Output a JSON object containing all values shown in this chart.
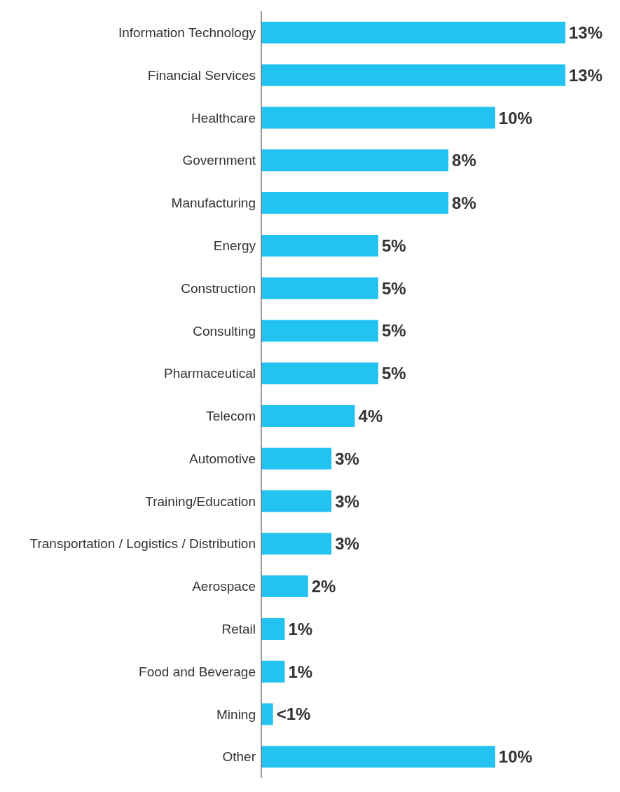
{
  "chart_data": {
    "type": "bar",
    "orientation": "horizontal",
    "categories": [
      "Information Technology",
      "Financial Services",
      "Healthcare",
      "Government",
      "Manufacturing",
      "Energy",
      "Construction",
      "Consulting",
      "Pharmaceutical",
      "Telecom",
      "Automotive",
      "Training/Education",
      "Transportation / Logistics / Distribution",
      "Aerospace",
      "Retail",
      "Food and Beverage",
      "Mining",
      "Other"
    ],
    "values": [
      13,
      13,
      10,
      8,
      8,
      5,
      5,
      5,
      5,
      4,
      3,
      3,
      3,
      2,
      1,
      1,
      0.5,
      10
    ],
    "value_labels": [
      "13%",
      "13%",
      "10%",
      "8%",
      "8%",
      "5%",
      "5%",
      "5%",
      "5%",
      "4%",
      "3%",
      "3%",
      "3%",
      "2%",
      "1%",
      "1%",
      "<1%",
      "10%"
    ],
    "color": "#22c3f0",
    "grid": false,
    "legend": false
  }
}
